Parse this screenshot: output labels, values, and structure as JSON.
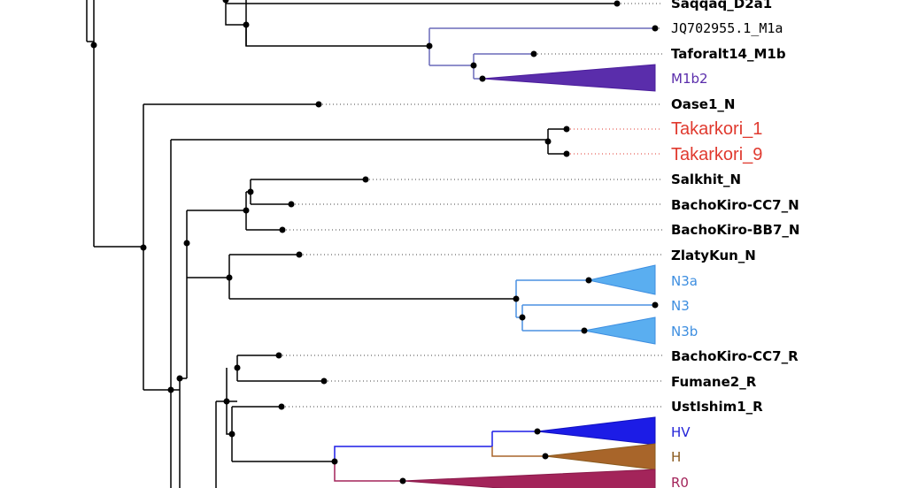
{
  "tree": {
    "leaves": [
      {
        "id": "saqqaq",
        "label": "Saqqaq_D2a1",
        "style": "bold",
        "color": "#000000"
      },
      {
        "id": "jq702955",
        "label": "JQ702955.1_M1a",
        "style": "mono",
        "color": "#000000"
      },
      {
        "id": "taforalt14",
        "label": "Taforalt14_M1b",
        "style": "bold",
        "color": "#000000"
      },
      {
        "id": "m1b2",
        "label": "M1b2",
        "style": "normal",
        "color": "#5a2dab"
      },
      {
        "id": "oase1",
        "label": "Oase1_N",
        "style": "bold",
        "color": "#000000"
      },
      {
        "id": "takarkori1",
        "label": "Takarkori_1",
        "style": "big",
        "color": "#e03a2f"
      },
      {
        "id": "takarkori9",
        "label": "Takarkori_9",
        "style": "big",
        "color": "#e03a2f"
      },
      {
        "id": "salkhit",
        "label": "Salkhit_N",
        "style": "bold",
        "color": "#000000"
      },
      {
        "id": "bachokiro-cc7-n",
        "label": "BachoKiro-CC7_N",
        "style": "bold",
        "color": "#000000"
      },
      {
        "id": "bachokiro-bb7-n",
        "label": "BachoKiro-BB7_N",
        "style": "bold",
        "color": "#000000"
      },
      {
        "id": "zlatykun",
        "label": "ZlatyKun_N",
        "style": "bold",
        "color": "#000000"
      },
      {
        "id": "n3a",
        "label": "N3a",
        "style": "normal",
        "color": "#3d8ee0"
      },
      {
        "id": "n3",
        "label": "N3",
        "style": "normal",
        "color": "#3d8ee0"
      },
      {
        "id": "n3b",
        "label": "N3b",
        "style": "normal",
        "color": "#3d8ee0"
      },
      {
        "id": "bachokiro-cc7-r",
        "label": "BachoKiro-CC7_R",
        "style": "bold",
        "color": "#000000"
      },
      {
        "id": "fumane2",
        "label": "Fumane2_R",
        "style": "bold",
        "color": "#000000"
      },
      {
        "id": "ustishim1",
        "label": "UstIshim1_R",
        "style": "bold",
        "color": "#000000"
      },
      {
        "id": "hv",
        "label": "HV",
        "style": "normal",
        "color": "#2424d8"
      },
      {
        "id": "h",
        "label": "H",
        "style": "normal",
        "color": "#8a5a1e"
      },
      {
        "id": "r0",
        "label": "R0",
        "style": "normal",
        "color": "#a3245a"
      }
    ],
    "colors": {
      "branch": "#000000",
      "m1_branch": "#6a6aba",
      "m1b2_clade": "#5a2dab",
      "takarkori": "#e03a2f",
      "n3_branch": "#4a90e2",
      "n3_clade": "#5aaef0",
      "hv_clade": "#1c1ce6",
      "h_clade": "#a8652a",
      "r0_clade": "#a3245a"
    }
  }
}
